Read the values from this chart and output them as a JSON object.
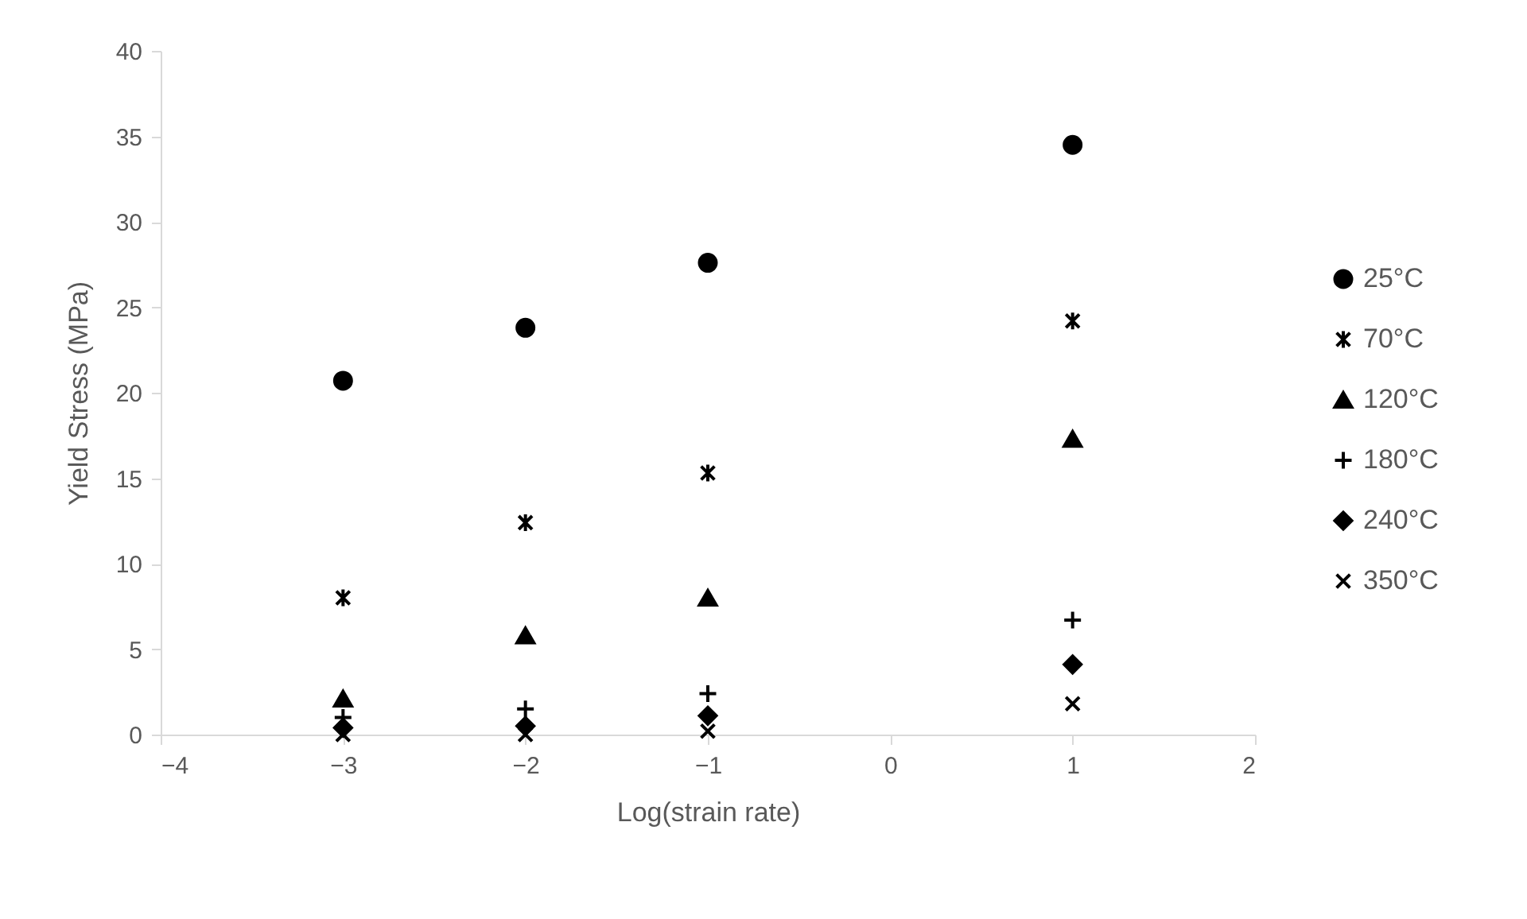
{
  "chart_data": {
    "type": "scatter",
    "xlabel": "Log(strain rate)",
    "ylabel": "Yield Stress (MPa)",
    "x": [
      -3,
      -2,
      -1,
      1
    ],
    "xlim": [
      -4,
      2
    ],
    "xticks": [
      -4,
      -3,
      -2,
      -1,
      0,
      1,
      2
    ],
    "ylim": [
      0,
      40
    ],
    "yticks": [
      0,
      5,
      10,
      15,
      20,
      25,
      30,
      35,
      40
    ],
    "grid": false,
    "legend": "right",
    "series": [
      {
        "name": "25°C",
        "color": "#000000",
        "marker": "circle",
        "values": [
          20.7,
          23.8,
          27.6,
          34.5
        ]
      },
      {
        "name": "70°C",
        "color": "#000000",
        "marker": "cross",
        "values": [
          8.0,
          12.4,
          15.3,
          24.2
        ]
      },
      {
        "name": "120°C",
        "color": "#000000",
        "marker": "triangle",
        "values": [
          2.1,
          5.8,
          8.0,
          17.3
        ]
      },
      {
        "name": "180°C",
        "color": "#000000",
        "marker": "plus",
        "values": [
          1.0,
          1.5,
          2.4,
          6.7
        ]
      },
      {
        "name": "240°C",
        "color": "#000000",
        "marker": "diamond",
        "values": [
          0.4,
          0.5,
          1.1,
          4.1
        ]
      },
      {
        "name": "350°C",
        "color": "#000000",
        "marker": "x",
        "values": [
          0.0,
          0.0,
          0.2,
          1.8
        ]
      }
    ]
  }
}
